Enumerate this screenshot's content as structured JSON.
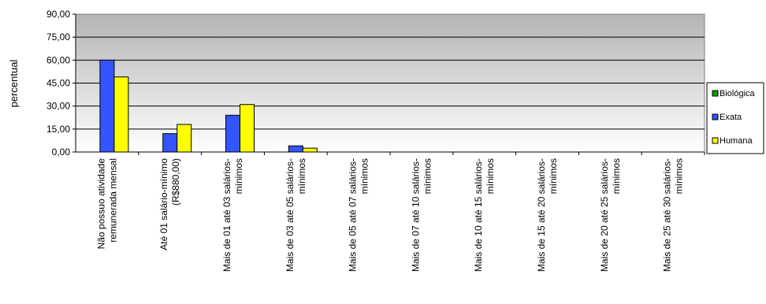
{
  "chart_data": {
    "type": "bar",
    "title": "",
    "xlabel": "",
    "ylabel": "percentual",
    "ylim": [
      0,
      90
    ],
    "yticks": [
      "0,00",
      "15,00",
      "30,00",
      "45,00",
      "60,00",
      "75,00",
      "90,00"
    ],
    "grid": true,
    "legend_position": "right",
    "categories": [
      [
        "Não possuo atividade",
        "remunerada mensal"
      ],
      [
        "Até 01 salário-mínimo",
        "(R$880,00)"
      ],
      [
        "Mais de 01 até 03 salários-",
        "mínimos"
      ],
      [
        "Mais de 03 até 05 salários-",
        "mínimos"
      ],
      [
        "Mais de 05 até 07 salários-",
        "mínimos"
      ],
      [
        "Mais de 07 até 10 salários-",
        "mínimos"
      ],
      [
        "Mais de 10 até 15 salários-",
        "mínimos"
      ],
      [
        "Mais de 15 até 20 salários-",
        "mínimos"
      ],
      [
        "Mais de 20 até 25 salários-",
        "mínimos"
      ],
      [
        "Mais de 25 até 30 salários-",
        "mínimos"
      ]
    ],
    "series": [
      {
        "name": "Biológica",
        "color": "#00a000",
        "values": [
          0,
          0,
          0,
          0,
          0,
          0,
          0,
          0,
          0,
          0
        ]
      },
      {
        "name": "Exata",
        "color": "#3355ff",
        "values": [
          60,
          12,
          24,
          4,
          0,
          0,
          0,
          0,
          0,
          0
        ]
      },
      {
        "name": "Humana",
        "color": "#ffff00",
        "values": [
          49,
          18,
          31,
          2.5,
          0,
          0,
          0,
          0,
          0,
          0
        ]
      }
    ]
  }
}
